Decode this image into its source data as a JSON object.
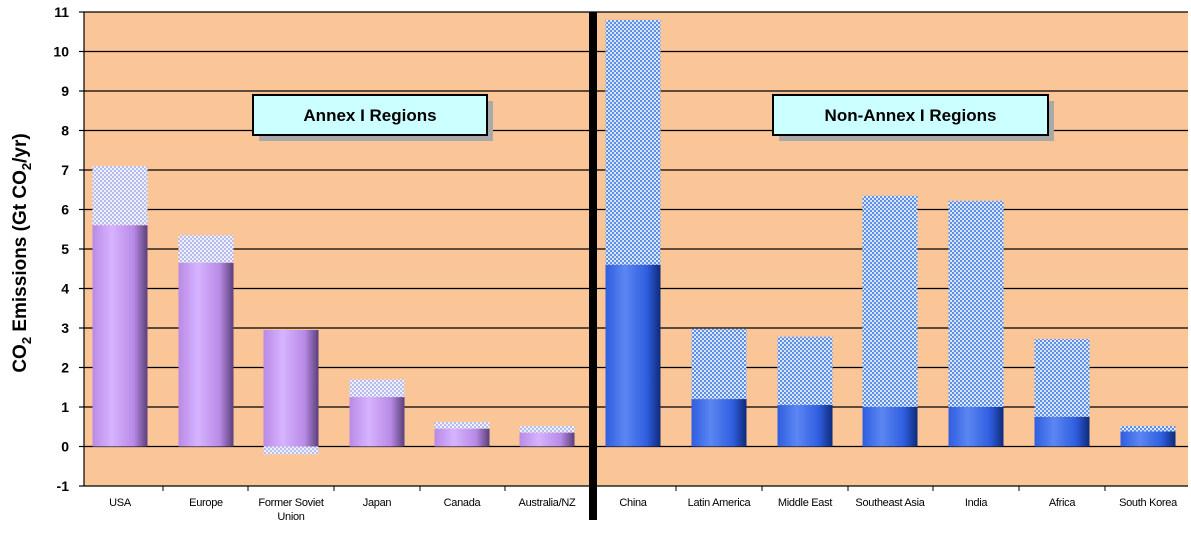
{
  "chart_data": {
    "type": "bar",
    "stacked": true,
    "ylabel_parts": [
      "CO",
      "2",
      " Emissions (Gt CO",
      "2",
      "/yr)"
    ],
    "ylim": [
      -1,
      11
    ],
    "yticks": [
      "-1",
      "0",
      "1",
      "2",
      "3",
      "4",
      "5",
      "6",
      "7",
      "8",
      "9",
      "10",
      "11"
    ],
    "grid": true,
    "background": "#fac597",
    "panels": [
      {
        "title": "Annex I Regions",
        "colors": {
          "base": "#b88ae6",
          "increment": "#c7cdf5"
        },
        "categories": [
          [
            "USA"
          ],
          [
            "Europe"
          ],
          [
            "Former Soviet",
            "Union"
          ],
          [
            "Japan"
          ],
          [
            "Canada"
          ],
          [
            "Australia/NZ"
          ]
        ],
        "base_values": [
          5.6,
          4.65,
          2.95,
          1.25,
          0.45,
          0.35
        ],
        "totals": [
          7.1,
          5.35,
          -0.2,
          1.7,
          0.62,
          0.52
        ]
      },
      {
        "title": "Non-Annex I Regions",
        "colors": {
          "base": "#2f5ee0",
          "increment": "#97b8ec"
        },
        "categories": [
          [
            "China"
          ],
          [
            "Latin America"
          ],
          [
            "Middle East"
          ],
          [
            "Southeast Asia"
          ],
          [
            "India"
          ],
          [
            "Africa"
          ],
          [
            "South Korea"
          ]
        ],
        "base_values": [
          4.6,
          1.2,
          1.05,
          1.0,
          1.0,
          0.75,
          0.38
        ],
        "totals": [
          10.8,
          2.98,
          2.78,
          6.35,
          6.22,
          2.72,
          0.52
        ]
      }
    ]
  }
}
